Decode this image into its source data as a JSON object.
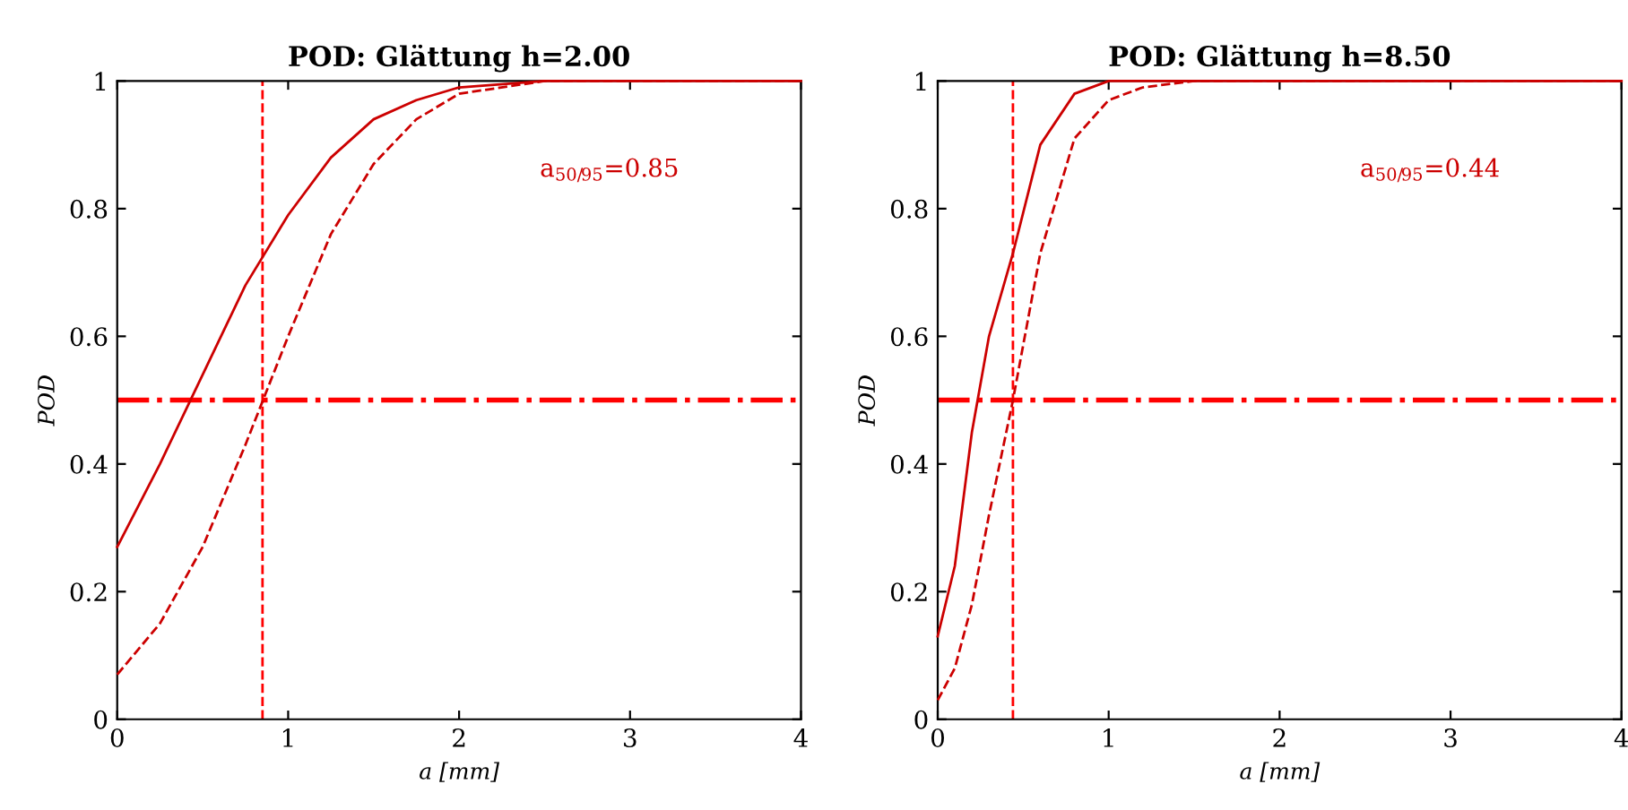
{
  "chart_data": [
    {
      "type": "line",
      "title": "POD: Glättung h=2.00",
      "xlabel": "a [mm]",
      "ylabel": "POD",
      "xlim": [
        0,
        4
      ],
      "ylim": [
        0,
        1
      ],
      "xticks": [
        0,
        1,
        2,
        3,
        4
      ],
      "yticks": [
        0,
        0.2,
        0.4,
        0.6,
        0.8,
        1
      ],
      "grid": false,
      "legend": false,
      "series": [
        {
          "color": "#cc0000",
          "line_style": "solid",
          "x": [
            0,
            0.25,
            0.5,
            0.75,
            1,
            1.25,
            1.5,
            1.75,
            2,
            2.5,
            3,
            3.5,
            4
          ],
          "values": [
            0.27,
            0.4,
            0.54,
            0.68,
            0.79,
            0.88,
            0.94,
            0.97,
            0.99,
            1,
            1,
            1,
            1
          ]
        },
        {
          "color": "#cc0000",
          "line_style": "dashed",
          "x": [
            0,
            0.25,
            0.5,
            0.75,
            1,
            1.25,
            1.5,
            1.75,
            2,
            2.5,
            3,
            3.5,
            4
          ],
          "values": [
            0.07,
            0.15,
            0.27,
            0.43,
            0.6,
            0.76,
            0.87,
            0.94,
            0.98,
            1,
            1,
            1,
            1
          ]
        }
      ],
      "ref_lines": [
        {
          "axis": "y",
          "value": 0.5,
          "color": "#ff0000",
          "line_style": "dashdot"
        },
        {
          "axis": "x",
          "value": 0.85,
          "color": "#ff0000",
          "line_style": "dashed"
        }
      ],
      "annotations": [
        "a$_{50/95}$=0.85"
      ]
    },
    {
      "type": "line",
      "title": "POD: Glättung h=8.50",
      "xlabel": "a [mm]",
      "ylabel": "POD",
      "xlim": [
        0,
        4
      ],
      "ylim": [
        0,
        1
      ],
      "xticks": [
        0,
        1,
        2,
        3,
        4
      ],
      "yticks": [
        0,
        0.2,
        0.4,
        0.6,
        0.8,
        1
      ],
      "grid": false,
      "legend": false,
      "series": [
        {
          "color": "#cc0000",
          "line_style": "solid",
          "x": [
            0,
            0.1,
            0.2,
            0.3,
            0.44,
            0.6,
            0.8,
            1,
            1.5,
            2,
            3,
            4
          ],
          "values": [
            0.13,
            0.24,
            0.45,
            0.6,
            0.73,
            0.9,
            0.98,
            1,
            1,
            1,
            1,
            1
          ]
        },
        {
          "color": "#cc0000",
          "line_style": "dashed",
          "x": [
            0,
            0.1,
            0.2,
            0.3,
            0.44,
            0.6,
            0.8,
            1,
            1.2,
            1.5,
            2,
            3,
            4
          ],
          "values": [
            0.03,
            0.08,
            0.18,
            0.32,
            0.5,
            0.73,
            0.91,
            0.97,
            0.99,
            1,
            1,
            1,
            1
          ]
        }
      ],
      "ref_lines": [
        {
          "axis": "y",
          "value": 0.5,
          "color": "#ff0000",
          "line_style": "dashdot"
        },
        {
          "axis": "x",
          "value": 0.44,
          "color": "#ff0000",
          "line_style": "dashed"
        }
      ],
      "annotations": [
        "a$_{50/95}$=0.44"
      ]
    }
  ]
}
